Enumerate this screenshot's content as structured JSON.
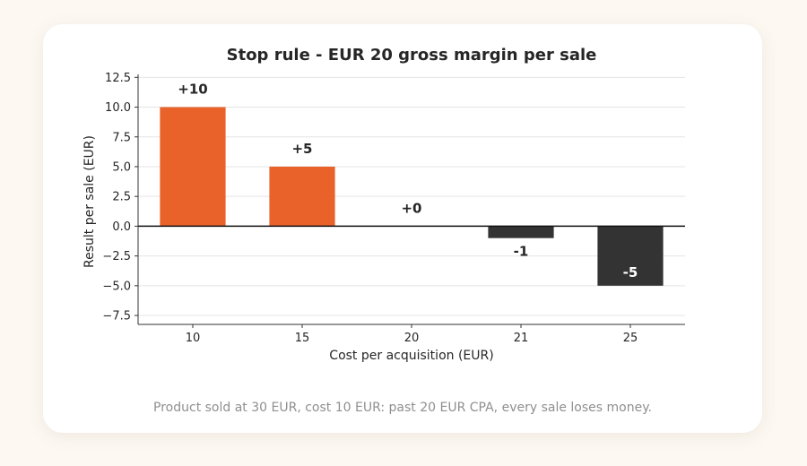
{
  "caption": "Product sold at 30 EUR, cost 10 EUR: past 20 EUR CPA, every sale loses money.",
  "chart_data": {
    "type": "bar",
    "title": "Stop rule - EUR 20 gross margin per sale",
    "xlabel": "Cost per acquisition (EUR)",
    "ylabel": "Result per sale (EUR)",
    "categories": [
      "10",
      "15",
      "20",
      "21",
      "25"
    ],
    "values": [
      10,
      5,
      0,
      -1,
      -5
    ],
    "data_labels": [
      "+10",
      "+5",
      "+0",
      "-1",
      "-5"
    ],
    "yticks": [
      12.5,
      10.0,
      7.5,
      5.0,
      2.5,
      0.0,
      -2.5,
      -5.0,
      -7.5
    ],
    "ytick_labels": [
      "12.5",
      "10.0",
      "7.5",
      "5.0",
      "2.5",
      "0.0",
      "−2.5",
      "−5.0",
      "−7.5"
    ],
    "ylim": [
      -8.25,
      12.75
    ],
    "grid": "horizontal",
    "legend": "none",
    "colors": {
      "positive": "#e8622a",
      "negative": "#333333",
      "zero_line": "#111111",
      "grid": "#e4e4e4",
      "text": "#262626"
    }
  }
}
